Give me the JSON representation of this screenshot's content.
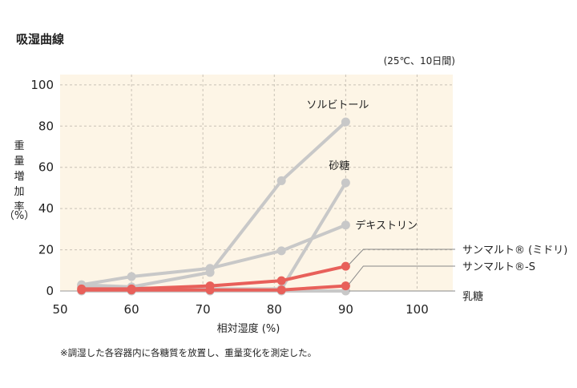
{
  "title": "吸湿曲線",
  "conditions": "(25℃、10日間)",
  "footnote": "※調湿した各容器内に各糖質を放置し、重量変化を測定した。",
  "chart_data": {
    "type": "line",
    "xlabel": "相対湿度 (%)",
    "ylabel": "重量増加率（%）",
    "xlim": [
      50,
      105
    ],
    "ylim": [
      0,
      105
    ],
    "xticks": [
      50,
      60,
      70,
      80,
      90,
      100
    ],
    "yticks": [
      0,
      20,
      40,
      60,
      80,
      100
    ],
    "grid": true,
    "background_color": "#fdf5e6",
    "series": [
      {
        "name": "ソルビトール",
        "color": "#c8c8c8",
        "label_placement": "above-end",
        "points": [
          [
            53,
            3
          ],
          [
            60,
            2
          ],
          [
            71,
            9
          ],
          [
            81,
            53.5
          ],
          [
            90,
            82
          ]
        ]
      },
      {
        "name": "砂糖",
        "color": "#c8c8c8",
        "label_placement": "above-end",
        "points": [
          [
            53,
            2
          ],
          [
            60,
            1.5
          ],
          [
            71,
            1
          ],
          [
            81,
            1
          ],
          [
            90,
            52.5
          ]
        ]
      },
      {
        "name": "デキストリン",
        "color": "#c8c8c8",
        "label_placement": "right-end",
        "points": [
          [
            53,
            3
          ],
          [
            60,
            7
          ],
          [
            71,
            11
          ],
          [
            81,
            19.5
          ],
          [
            90,
            32
          ]
        ]
      },
      {
        "name": "サンマルト® (ミドリ)",
        "color": "#e8605a",
        "label_placement": "leader-right",
        "points": [
          [
            53,
            1
          ],
          [
            60,
            1
          ],
          [
            71,
            2.5
          ],
          [
            81,
            5
          ],
          [
            90,
            12
          ]
        ]
      },
      {
        "name": "サンマルト®-S",
        "color": "#e8605a",
        "label_placement": "leader-right",
        "points": [
          [
            53,
            0.5
          ],
          [
            60,
            0.5
          ],
          [
            71,
            0.5
          ],
          [
            81,
            0.5
          ],
          [
            90,
            2.5
          ]
        ]
      },
      {
        "name": "乳糖",
        "color": "#c8c8c8",
        "label_placement": "leader-right",
        "points": [
          [
            53,
            0
          ],
          [
            60,
            0
          ],
          [
            71,
            0
          ],
          [
            81,
            0
          ],
          [
            90,
            0
          ]
        ]
      }
    ]
  }
}
